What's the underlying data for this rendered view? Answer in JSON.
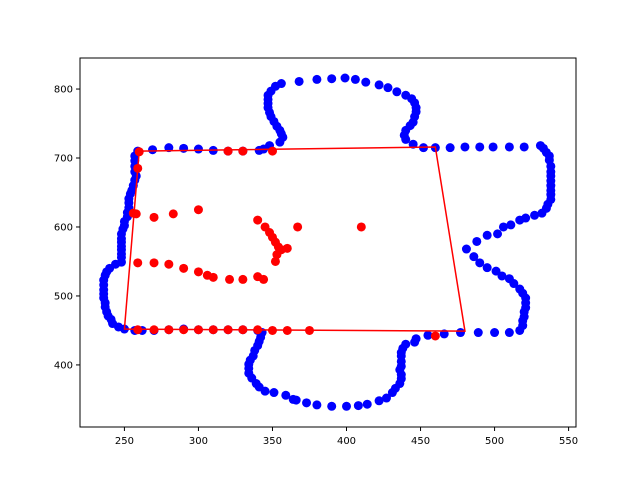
{
  "chart_data": {
    "type": "scatter",
    "title": "",
    "xlabel": "",
    "ylabel": "",
    "xlim": [
      220,
      555
    ],
    "ylim": [
      310,
      845
    ],
    "x_ticks": [
      250,
      300,
      350,
      400,
      450,
      500,
      550
    ],
    "y_ticks": [
      400,
      500,
      600,
      700,
      800
    ],
    "grid": false,
    "legend": "none",
    "colors": {
      "blue": "#0000ff",
      "red": "#ff0000",
      "axis": "#000000"
    },
    "series": [
      {
        "color": "blue",
        "marker": "circle",
        "points": [
          [
            250,
            452
          ],
          [
            257,
            450
          ],
          [
            262,
            450
          ],
          [
            270,
            450
          ],
          [
            280,
            451
          ],
          [
            290,
            452
          ],
          [
            300,
            451
          ],
          [
            310,
            451
          ],
          [
            320,
            451
          ],
          [
            330,
            451
          ],
          [
            340,
            450
          ],
          [
            343,
            447
          ],
          [
            342,
            440
          ],
          [
            341,
            434
          ],
          [
            340,
            428
          ],
          [
            338,
            421
          ],
          [
            337,
            413
          ],
          [
            335,
            407
          ],
          [
            334,
            401
          ],
          [
            334,
            395
          ],
          [
            334,
            388
          ],
          [
            336,
            381
          ],
          [
            339,
            373
          ],
          [
            341,
            368
          ],
          [
            345,
            362
          ],
          [
            351,
            360
          ],
          [
            359,
            356
          ],
          [
            364,
            350
          ],
          [
            366,
            349
          ],
          [
            373,
            345
          ],
          [
            380,
            342
          ],
          [
            390,
            340
          ],
          [
            400,
            340
          ],
          [
            408,
            341
          ],
          [
            414,
            343
          ],
          [
            422,
            348
          ],
          [
            427,
            352
          ],
          [
            431,
            360
          ],
          [
            433,
            366
          ],
          [
            436,
            373
          ],
          [
            437,
            380
          ],
          [
            437,
            386
          ],
          [
            436,
            393
          ],
          [
            437,
            398
          ],
          [
            437,
            405
          ],
          [
            437,
            413
          ],
          [
            437,
            418
          ],
          [
            438,
            424
          ],
          [
            440,
            430
          ],
          [
            446,
            433
          ],
          [
            447,
            438
          ],
          [
            455,
            443
          ],
          [
            466,
            445
          ],
          [
            477,
            447
          ],
          [
            489,
            447
          ],
          [
            500,
            447
          ],
          [
            510,
            447
          ],
          [
            517,
            450
          ],
          [
            519,
            457
          ],
          [
            519,
            464
          ],
          [
            520,
            470
          ],
          [
            520,
            477
          ],
          [
            521,
            483
          ],
          [
            521,
            490
          ],
          [
            521,
            497
          ],
          [
            519,
            504
          ],
          [
            517,
            510
          ],
          [
            513,
            518
          ],
          [
            510,
            525
          ],
          [
            505,
            529
          ],
          [
            501,
            536
          ],
          [
            495,
            541
          ],
          [
            490,
            548
          ],
          [
            486,
            557
          ],
          [
            481,
            568
          ],
          [
            488,
            579
          ],
          [
            495,
            588
          ],
          [
            502,
            590
          ],
          [
            506,
            600
          ],
          [
            511,
            603
          ],
          [
            517,
            610
          ],
          [
            521,
            613
          ],
          [
            527,
            617
          ],
          [
            532,
            620
          ],
          [
            535,
            627
          ],
          [
            536,
            633
          ],
          [
            538,
            640
          ],
          [
            538,
            647
          ],
          [
            538,
            653
          ],
          [
            538,
            660
          ],
          [
            538,
            667
          ],
          [
            538,
            674
          ],
          [
            538,
            680
          ],
          [
            538,
            688
          ],
          [
            537,
            697
          ],
          [
            537,
            703
          ],
          [
            535,
            708
          ],
          [
            533,
            714
          ],
          [
            531,
            718
          ],
          [
            520,
            716
          ],
          [
            510,
            716
          ],
          [
            499,
            716
          ],
          [
            490,
            716
          ],
          [
            480,
            716
          ],
          [
            470,
            715
          ],
          [
            460,
            715
          ],
          [
            452,
            715
          ],
          [
            445,
            720
          ],
          [
            440,
            727
          ],
          [
            439,
            733
          ],
          [
            440,
            740
          ],
          [
            443,
            747
          ],
          [
            445,
            752
          ],
          [
            446,
            760
          ],
          [
            447,
            767
          ],
          [
            447,
            773
          ],
          [
            446,
            780
          ],
          [
            444,
            786
          ],
          [
            440,
            791
          ],
          [
            434,
            796
          ],
          [
            428,
            802
          ],
          [
            422,
            806
          ],
          [
            413,
            810
          ],
          [
            406,
            814
          ],
          [
            399,
            816
          ],
          [
            390,
            815
          ],
          [
            380,
            814
          ],
          [
            368,
            811
          ],
          [
            356,
            808
          ],
          [
            352,
            804
          ],
          [
            349,
            797
          ],
          [
            347,
            791
          ],
          [
            347,
            785
          ],
          [
            347,
            779
          ],
          [
            347,
            773
          ],
          [
            348,
            766
          ],
          [
            349,
            760
          ],
          [
            351,
            753
          ],
          [
            353,
            746
          ],
          [
            355,
            740
          ],
          [
            356,
            735
          ],
          [
            357,
            730
          ],
          [
            355,
            723
          ],
          [
            348,
            718
          ],
          [
            344,
            713
          ],
          [
            341,
            711
          ],
          [
            330,
            710
          ],
          [
            320,
            710
          ],
          [
            310,
            711
          ],
          [
            300,
            713
          ],
          [
            290,
            714
          ],
          [
            280,
            715
          ],
          [
            269,
            712
          ],
          [
            259,
            710
          ],
          [
            257,
            703
          ],
          [
            257,
            696
          ],
          [
            257,
            688
          ],
          [
            257,
            680
          ],
          [
            258,
            674
          ],
          [
            257,
            668
          ],
          [
            256,
            660
          ],
          [
            255,
            653
          ],
          [
            254,
            648
          ],
          [
            253,
            641
          ],
          [
            253,
            635
          ],
          [
            253,
            628
          ],
          [
            252,
            621
          ],
          [
            252,
            615
          ],
          [
            250,
            608
          ],
          [
            250,
            602
          ],
          [
            249,
            597
          ],
          [
            248,
            590
          ],
          [
            248,
            583
          ],
          [
            248,
            578
          ],
          [
            248,
            572
          ],
          [
            248,
            567
          ],
          [
            248,
            561
          ],
          [
            248,
            556
          ],
          [
            248,
            549
          ],
          [
            244,
            546
          ],
          [
            240,
            540
          ],
          [
            238,
            535
          ],
          [
            237,
            530
          ],
          [
            236,
            523
          ],
          [
            236,
            516
          ],
          [
            236,
            509
          ],
          [
            236,
            503
          ],
          [
            236,
            497
          ],
          [
            237,
            490
          ],
          [
            237,
            484
          ],
          [
            238,
            477
          ],
          [
            239,
            471
          ],
          [
            241,
            466
          ],
          [
            242,
            460
          ],
          [
            246,
            455
          ]
        ]
      },
      {
        "color": "red",
        "marker": "circle",
        "points": [
          [
            260,
            709
          ],
          [
            259,
            685
          ],
          [
            256,
            620
          ],
          [
            258,
            619
          ],
          [
            270,
            614
          ],
          [
            283,
            619
          ],
          [
            300,
            625
          ],
          [
            340,
            610
          ],
          [
            345,
            600
          ],
          [
            348,
            592
          ],
          [
            350,
            585
          ],
          [
            352,
            578
          ],
          [
            354,
            571
          ],
          [
            356,
            567
          ],
          [
            353,
            560
          ],
          [
            352,
            550
          ],
          [
            360,
            569
          ],
          [
            367,
            600
          ],
          [
            410,
            600
          ],
          [
            259,
            548
          ],
          [
            270,
            548
          ],
          [
            280,
            546
          ],
          [
            290,
            540
          ],
          [
            300,
            535
          ],
          [
            306,
            530
          ],
          [
            310,
            527
          ],
          [
            321,
            524
          ],
          [
            330,
            524
          ],
          [
            340,
            528
          ],
          [
            344,
            524
          ],
          [
            259,
            451
          ],
          [
            270,
            451
          ],
          [
            280,
            451
          ],
          [
            290,
            451
          ],
          [
            300,
            451
          ],
          [
            310,
            451
          ],
          [
            320,
            451
          ],
          [
            330,
            451
          ],
          [
            340,
            451
          ],
          [
            350,
            450
          ],
          [
            360,
            450
          ],
          [
            375,
            450
          ],
          [
            460,
            442
          ],
          [
            320,
            710
          ],
          [
            330,
            710
          ],
          [
            350,
            710
          ]
        ]
      }
    ],
    "polygon": {
      "color": "red",
      "points": [
        [
          260,
          710
        ],
        [
          460,
          716
        ],
        [
          480,
          449
        ],
        [
          250,
          452
        ],
        [
          260,
          710
        ]
      ]
    }
  }
}
